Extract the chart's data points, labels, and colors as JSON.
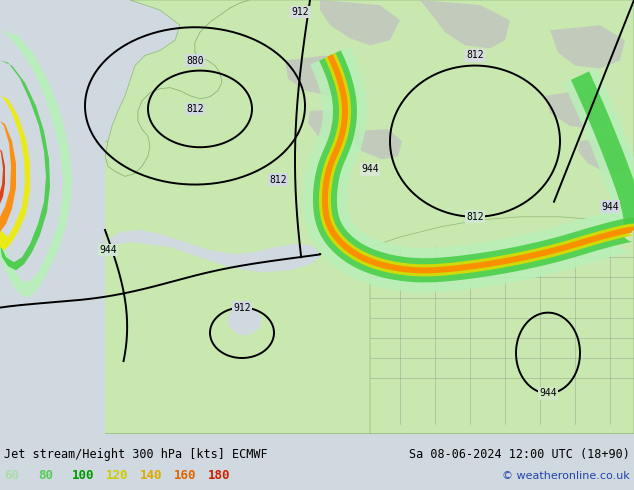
{
  "title_left": "Jet stream/Height 300 hPa [kts] ECMWF",
  "title_right": "Sa 08-06-2024 12:00 UTC (18+90)",
  "copyright": "© weatheronline.co.uk",
  "legend_values": [
    "60",
    "80",
    "100",
    "120",
    "140",
    "160",
    "180"
  ],
  "legend_colors": [
    "#aaddaa",
    "#55cc55",
    "#009900",
    "#cccc00",
    "#ddaa00",
    "#dd6600",
    "#cc2200"
  ],
  "ocean_color": "#d0d8e0",
  "land_color": "#c8e8b0",
  "land_edge_color": "#90b878",
  "bottom_bar_color": "#e0e0e0",
  "figsize": [
    6.34,
    4.9
  ],
  "dpi": 100
}
